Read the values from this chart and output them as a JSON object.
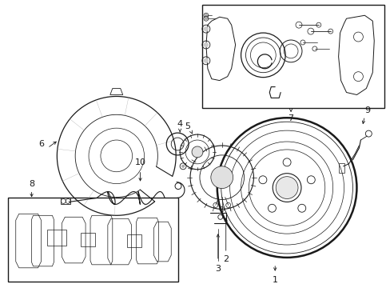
{
  "bg_color": "#ffffff",
  "line_color": "#1a1a1a",
  "gray": "#888888",
  "light_gray": "#cccccc",
  "figsize": [
    4.89,
    3.6
  ],
  "dpi": 100,
  "xlim": [
    0,
    489
  ],
  "ylim": [
    0,
    360
  ]
}
